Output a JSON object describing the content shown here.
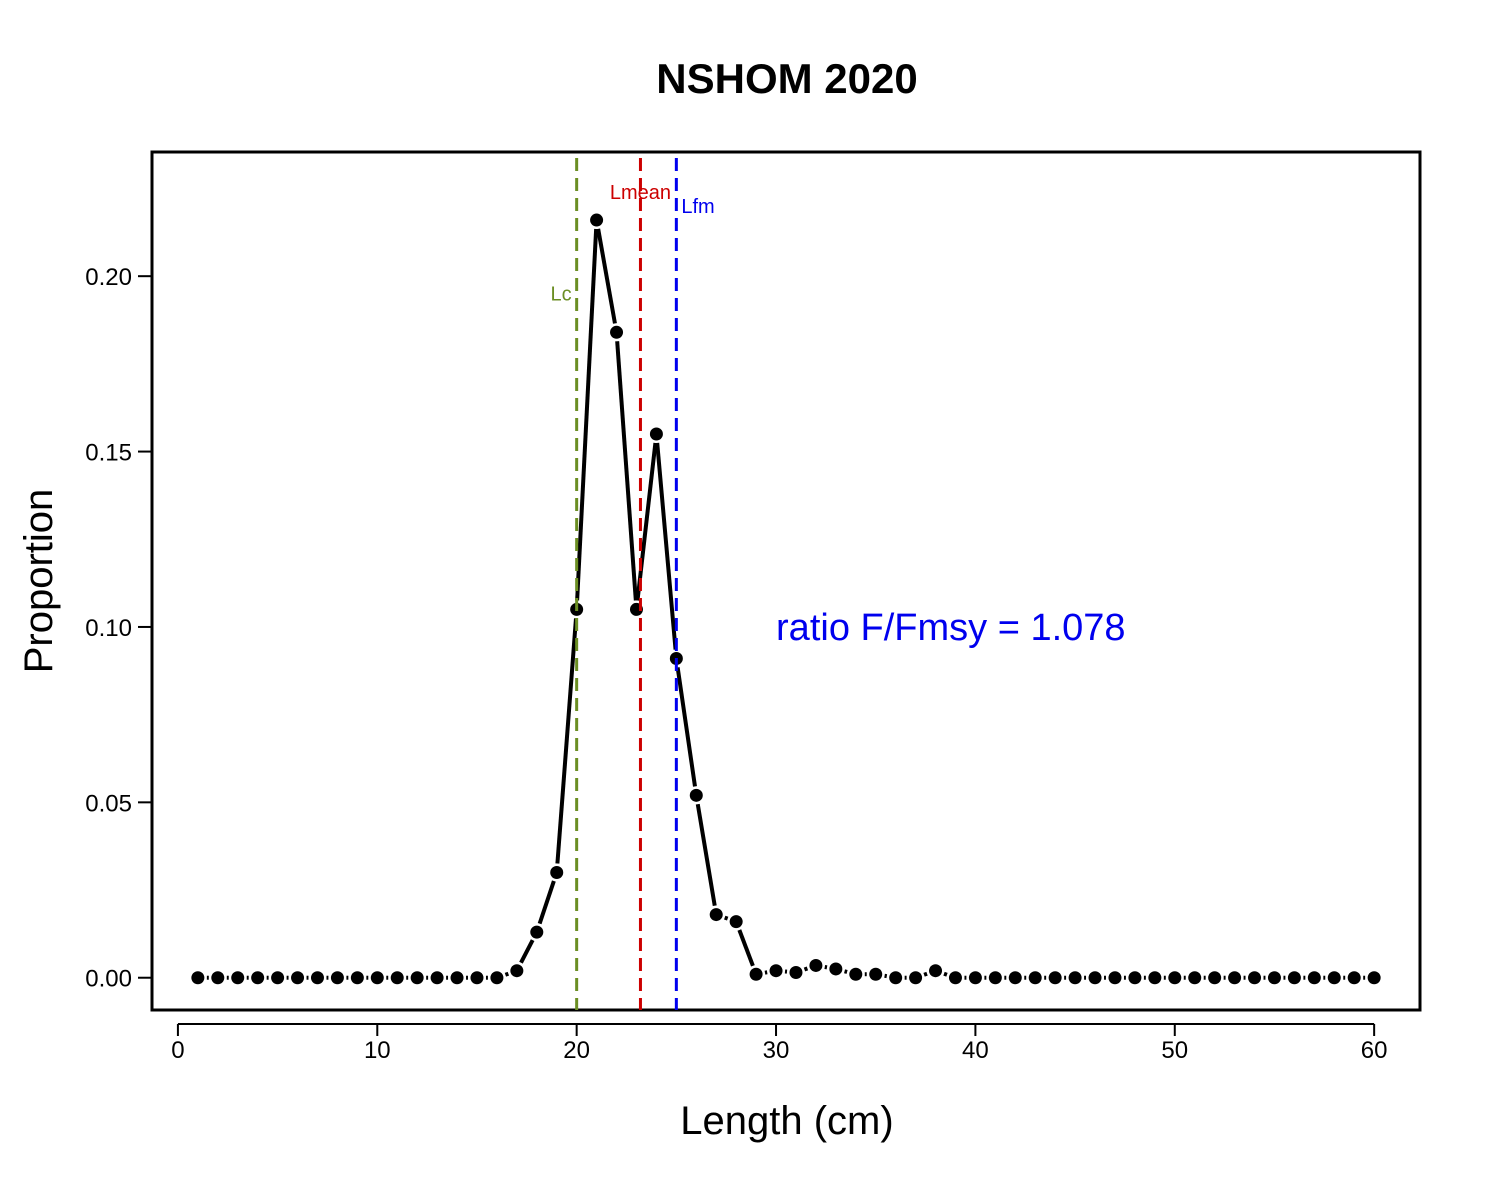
{
  "chart_data": {
    "type": "line",
    "title": "NSHOM 2020",
    "xlabel": "Length (cm)",
    "ylabel": "Proportion",
    "xlim": [
      -1.3,
      62.3
    ],
    "ylim": [
      -0.0092,
      0.2354
    ],
    "x_ticks": [
      0,
      10,
      20,
      30,
      40,
      50,
      60
    ],
    "x_tick_labels": [
      "0",
      "10",
      "20",
      "30",
      "40",
      "50",
      "60"
    ],
    "y_ticks": [
      0.0,
      0.05,
      0.1,
      0.15,
      0.2
    ],
    "y_tick_labels": [
      "0.00",
      "0.05",
      "0.10",
      "0.15",
      "0.20"
    ],
    "grid": false,
    "series": [
      {
        "color": "#000000",
        "x": [
          1,
          2,
          3,
          4,
          5,
          6,
          7,
          8,
          9,
          10,
          11,
          12,
          13,
          14,
          15,
          16,
          17,
          18,
          19,
          20,
          21,
          22,
          23,
          24,
          25,
          26,
          27,
          28,
          29,
          30,
          31,
          32,
          33,
          34,
          35,
          36,
          37,
          38,
          39,
          40,
          41,
          42,
          43,
          44,
          45,
          46,
          47,
          48,
          49,
          50,
          51,
          52,
          53,
          54,
          55,
          56,
          57,
          58,
          59,
          60
        ],
        "y": [
          0,
          0,
          0,
          0,
          0,
          0,
          0,
          0,
          0,
          0,
          0,
          0,
          0,
          0,
          0,
          0,
          0.002,
          0.013,
          0.03,
          0.105,
          0.216,
          0.184,
          0.105,
          0.155,
          0.091,
          0.052,
          0.018,
          0.016,
          0.001,
          0.002,
          0.0015,
          0.0035,
          0.0025,
          0.001,
          0.001,
          0,
          0,
          0.002,
          0,
          0,
          0,
          0,
          0,
          0,
          0,
          0,
          0,
          0,
          0,
          0,
          0,
          0,
          0,
          0,
          0,
          0,
          0,
          0,
          0,
          0
        ]
      }
    ],
    "reference_lines": [
      {
        "label": "Lc",
        "x": 20.0,
        "color": "#6b8e23",
        "label_y": 0.195,
        "label_side": "left"
      },
      {
        "label": "Lmean",
        "x": 23.2,
        "color": "#cc0000",
        "label_y": 0.224,
        "label_side": "center"
      },
      {
        "label": "Lfm",
        "x": 25.0,
        "color": "#0000ee",
        "label_y": 0.22,
        "label_side": "right"
      }
    ],
    "annotations": [
      {
        "text": "ratio F/Fmsy = 1.078",
        "x": 30,
        "y": 0.1,
        "color": "#0000ee"
      }
    ]
  }
}
